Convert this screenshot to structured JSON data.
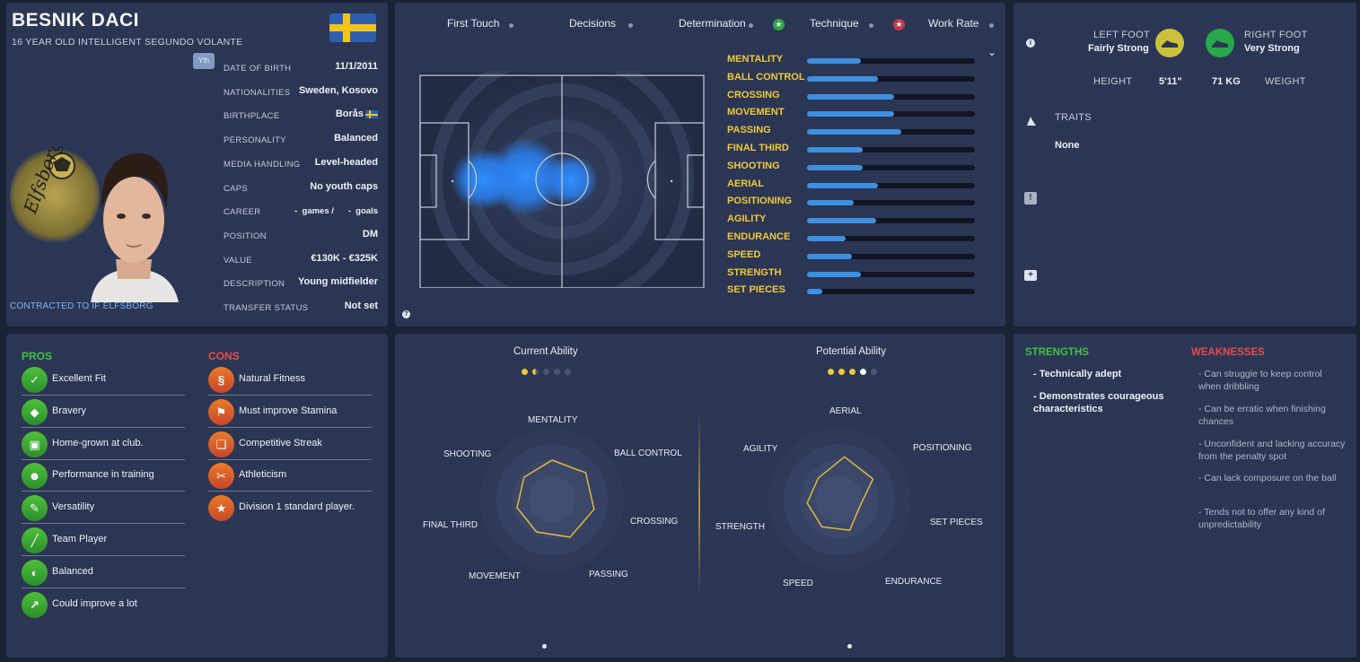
{
  "player": {
    "name": "BESNIK DACI",
    "subtitle": "16 YEAR OLD INTELLIGENT  SEGUNDO VOLANTE",
    "yth_badge": "Yth",
    "contract": "CONTRACTED TO IF ELFSBORG",
    "club_logo_text": "Elfsborg",
    "info": [
      {
        "label": "DATE OF BIRTH",
        "value": "11/1/2011"
      },
      {
        "label": "NATIONALITIES",
        "value": "Sweden, Kosovo"
      },
      {
        "label": "BIRTHPLACE",
        "value": "Borås"
      },
      {
        "label": "PERSONALITY",
        "value": "Balanced"
      },
      {
        "label": "MEDIA HANDLING",
        "value": "Level-headed"
      },
      {
        "label": "CAPS",
        "value": "No youth caps"
      },
      {
        "label": "CAREER",
        "value": "-  games /      -  goals"
      },
      {
        "label": "POSITION",
        "value": "DM"
      },
      {
        "label": "VALUE",
        "value": "€130K - €325K"
      },
      {
        "label": "DESCRIPTION",
        "value": "Young midfielder"
      },
      {
        "label": "TRANSFER STATUS",
        "value": "Not set"
      }
    ]
  },
  "tabs": [
    "First Touch",
    "Decisions",
    "Determination",
    "Technique",
    "Work Rate"
  ],
  "attributes": [
    {
      "name": "Mentality",
      "value": 32
    },
    {
      "name": "Ball Control",
      "value": 42
    },
    {
      "name": "Crossing",
      "value": 52
    },
    {
      "name": "Movement",
      "value": 52
    },
    {
      "name": "Passing",
      "value": 56
    },
    {
      "name": "Final Third",
      "value": 33
    },
    {
      "name": "Shooting",
      "value": 33
    },
    {
      "name": "Aerial",
      "value": 42
    },
    {
      "name": "Positioning",
      "value": 28
    },
    {
      "name": "Agility",
      "value": 41
    },
    {
      "name": "Endurance",
      "value": 23
    },
    {
      "name": "Speed",
      "value": 27
    },
    {
      "name": "Strength",
      "value": 32
    },
    {
      "name": "Set Pieces",
      "value": 9
    }
  ],
  "physical": {
    "left_foot_label": "LEFT FOOT",
    "left_foot_value": "Fairly Strong",
    "right_foot_label": "RIGHT FOOT",
    "right_foot_value": "Very Strong",
    "height_label": "HEIGHT",
    "height_value": "5'11\"",
    "weight_value": "71 KG",
    "weight_label": "WEIGHT",
    "traits_label": "TRAITS",
    "traits_value": "None"
  },
  "pros_label": "PROS",
  "cons_label": "CONS",
  "pros": [
    {
      "text": "Excellent Fit",
      "icon": "fit-icon"
    },
    {
      "text": "Bravery",
      "icon": "shield-icon"
    },
    {
      "text": "Home-grown at club.",
      "icon": "home-grown-icon"
    },
    {
      "text": "Performance in training",
      "icon": "training-icon"
    },
    {
      "text": "Versatility",
      "icon": "versatility-icon"
    },
    {
      "text": "Team Player",
      "icon": "team-player-icon"
    },
    {
      "text": "Balanced",
      "icon": "balanced-icon"
    },
    {
      "text": "Could improve a lot",
      "icon": "improve-icon"
    }
  ],
  "cons": [
    {
      "text": "Natural Fitness",
      "icon": "dna-icon"
    },
    {
      "text": "Must improve Stamina",
      "icon": "stamina-icon"
    },
    {
      "text": "Competitive Streak",
      "icon": "competitive-icon"
    },
    {
      "text": "Athleticism",
      "icon": "athleticism-icon"
    },
    {
      "text": "Division 1 standard player.",
      "icon": "star-icon"
    }
  ],
  "current_ability": {
    "title": "Current Ability",
    "stars": 1.5,
    "max": 5
  },
  "potential_ability": {
    "title": "Potential Ability",
    "stars": 4,
    "max": 5
  },
  "radar_current": {
    "labels": [
      "MENTALITY",
      "BALL CONTROL",
      "CROSSING",
      "PASSING",
      "MOVEMENT",
      "FINAL THIRD",
      "SHOOTING"
    ],
    "values": [
      0.55,
      0.6,
      0.6,
      0.58,
      0.5,
      0.5,
      0.5
    ]
  },
  "radar_potential": {
    "labels": [
      "AERIAL",
      "POSITIONING",
      "SET PIECES",
      "ENDURANCE",
      "SPEED",
      "STRENGTH",
      "AGILITY"
    ],
    "values": [
      0.6,
      0.55,
      0.3,
      0.45,
      0.45,
      0.45,
      0.42
    ]
  },
  "strengths_label": "STRENGTHS",
  "weaknesses_label": "WEAKNESSES",
  "strengths": [
    "- Technically adept",
    "- Demonstrates courageous characteristics"
  ],
  "weaknesses": [
    "- Can struggle to keep control when dribbling",
    "- Can be erratic when finishing chances",
    "- Unconfident and lacking accuracy from the penalty spot",
    "- Can lack composure on the ball",
    "- Tends not to offer any kind of unpredictability"
  ],
  "colors": {
    "accent": "#3d8fe0",
    "gold": "#f1c83a",
    "pros": "#3ec23e",
    "cons": "#e84a4a",
    "panel": "#2b3654"
  }
}
